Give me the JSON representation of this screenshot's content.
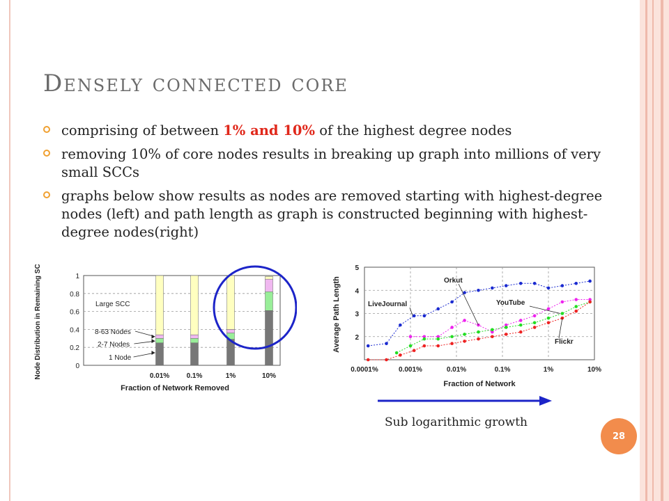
{
  "slide": {
    "title": "Densely connected core",
    "bullets": [
      {
        "pre": "comprising of between ",
        "highlight": "1% and 10%",
        "post": " of the highest degree nodes"
      },
      {
        "pre": "removing 10% of core nodes results in breaking up graph into millions of very small SCCs",
        "highlight": "",
        "post": ""
      },
      {
        "pre": "graphs below show results as nodes are removed starting with highest-degree nodes (left) and path length as graph is constructed beginning with highest-degree nodes(right)",
        "highlight": "",
        "post": ""
      }
    ],
    "caption": "Sub logarithmic growth",
    "page_number": "28",
    "colors": {
      "bullet": "#f0a030",
      "highlight": "#e0271a",
      "badge": "#f28c4c",
      "circle": "#1c24c8",
      "arrow": "#1c24c8"
    }
  },
  "chart_data": [
    {
      "type": "bar",
      "stacked": true,
      "ylabel": "Node Distribution in Remaining SCCs",
      "xlabel": "Fraction of Network Removed",
      "categories": [
        "0.01%",
        "0.1%",
        "1%",
        "10%"
      ],
      "yticks": [
        "0",
        "0.2",
        "0.4",
        "0.6",
        "0.8",
        "1"
      ],
      "ylim": [
        0,
        1
      ],
      "series": [
        {
          "name": "1 Node",
          "color": "#777777",
          "values": [
            0.25,
            0.25,
            0.29,
            0.61
          ]
        },
        {
          "name": "2-7 Nodes",
          "color": "#99ee99",
          "values": [
            0.05,
            0.05,
            0.07,
            0.21
          ]
        },
        {
          "name": "8-63 Nodes",
          "color": "#f0b8f0",
          "values": [
            0.04,
            0.04,
            0.04,
            0.14
          ]
        },
        {
          "name": "Large SCC",
          "color": "#ffffc0",
          "values": [
            0.66,
            0.66,
            0.6,
            0.03
          ]
        }
      ],
      "grid": true
    },
    {
      "type": "line",
      "ylabel": "Average Path Length",
      "xlabel": "Fraction of Network",
      "x_scale": "log",
      "xticks": [
        "0.0001%",
        "0.001%",
        "0.01%",
        "0.1%",
        "1%",
        "10%"
      ],
      "yticks": [
        "1",
        "2",
        "3",
        "4",
        "5"
      ],
      "ylim": [
        1,
        5
      ],
      "grid": true,
      "series": [
        {
          "name": "Orkut",
          "color": "#1a2ad0",
          "points": [
            [
              0.00012,
              1.6
            ],
            [
              0.0003,
              1.7
            ],
            [
              0.0006,
              2.5
            ],
            [
              0.0012,
              2.9
            ],
            [
              0.002,
              2.9
            ],
            [
              0.004,
              3.2
            ],
            [
              0.008,
              3.5
            ],
            [
              0.015,
              3.9
            ],
            [
              0.03,
              4.0
            ],
            [
              0.06,
              4.1
            ],
            [
              0.12,
              4.2
            ],
            [
              0.25,
              4.3
            ],
            [
              0.5,
              4.3
            ],
            [
              1,
              4.1
            ],
            [
              2,
              4.2
            ],
            [
              4,
              4.3
            ],
            [
              8,
              4.4
            ]
          ]
        },
        {
          "name": "LiveJournal",
          "color": "#ee22ee",
          "points": [
            [
              0.001,
              2.0
            ],
            [
              0.002,
              2.0
            ],
            [
              0.004,
              2.0
            ],
            [
              0.008,
              2.4
            ],
            [
              0.015,
              2.7
            ],
            [
              0.03,
              2.5
            ],
            [
              0.06,
              2.2
            ],
            [
              0.12,
              2.5
            ],
            [
              0.25,
              2.7
            ],
            [
              0.5,
              2.9
            ],
            [
              1,
              3.2
            ],
            [
              2,
              3.5
            ],
            [
              4,
              3.6
            ],
            [
              8,
              3.6
            ]
          ]
        },
        {
          "name": "YouTube",
          "color": "#22dd22",
          "points": [
            [
              0.0005,
              1.3
            ],
            [
              0.001,
              1.6
            ],
            [
              0.002,
              1.9
            ],
            [
              0.004,
              1.9
            ],
            [
              0.008,
              2.0
            ],
            [
              0.015,
              2.1
            ],
            [
              0.03,
              2.2
            ],
            [
              0.06,
              2.3
            ],
            [
              0.12,
              2.4
            ],
            [
              0.25,
              2.5
            ],
            [
              0.5,
              2.6
            ],
            [
              1,
              2.8
            ],
            [
              2,
              3.0
            ],
            [
              4,
              3.3
            ],
            [
              8,
              3.5
            ]
          ]
        },
        {
          "name": "Flickr",
          "color": "#ee2222",
          "points": [
            [
              0.00012,
              1.0
            ],
            [
              0.0003,
              1.0
            ],
            [
              0.0006,
              1.2
            ],
            [
              0.0012,
              1.4
            ],
            [
              0.002,
              1.6
            ],
            [
              0.004,
              1.6
            ],
            [
              0.008,
              1.7
            ],
            [
              0.015,
              1.8
            ],
            [
              0.03,
              1.9
            ],
            [
              0.06,
              2.0
            ],
            [
              0.12,
              2.1
            ],
            [
              0.25,
              2.2
            ],
            [
              0.5,
              2.4
            ],
            [
              1,
              2.6
            ],
            [
              2,
              2.8
            ],
            [
              4,
              3.1
            ],
            [
              8,
              3.5
            ]
          ]
        }
      ]
    }
  ]
}
